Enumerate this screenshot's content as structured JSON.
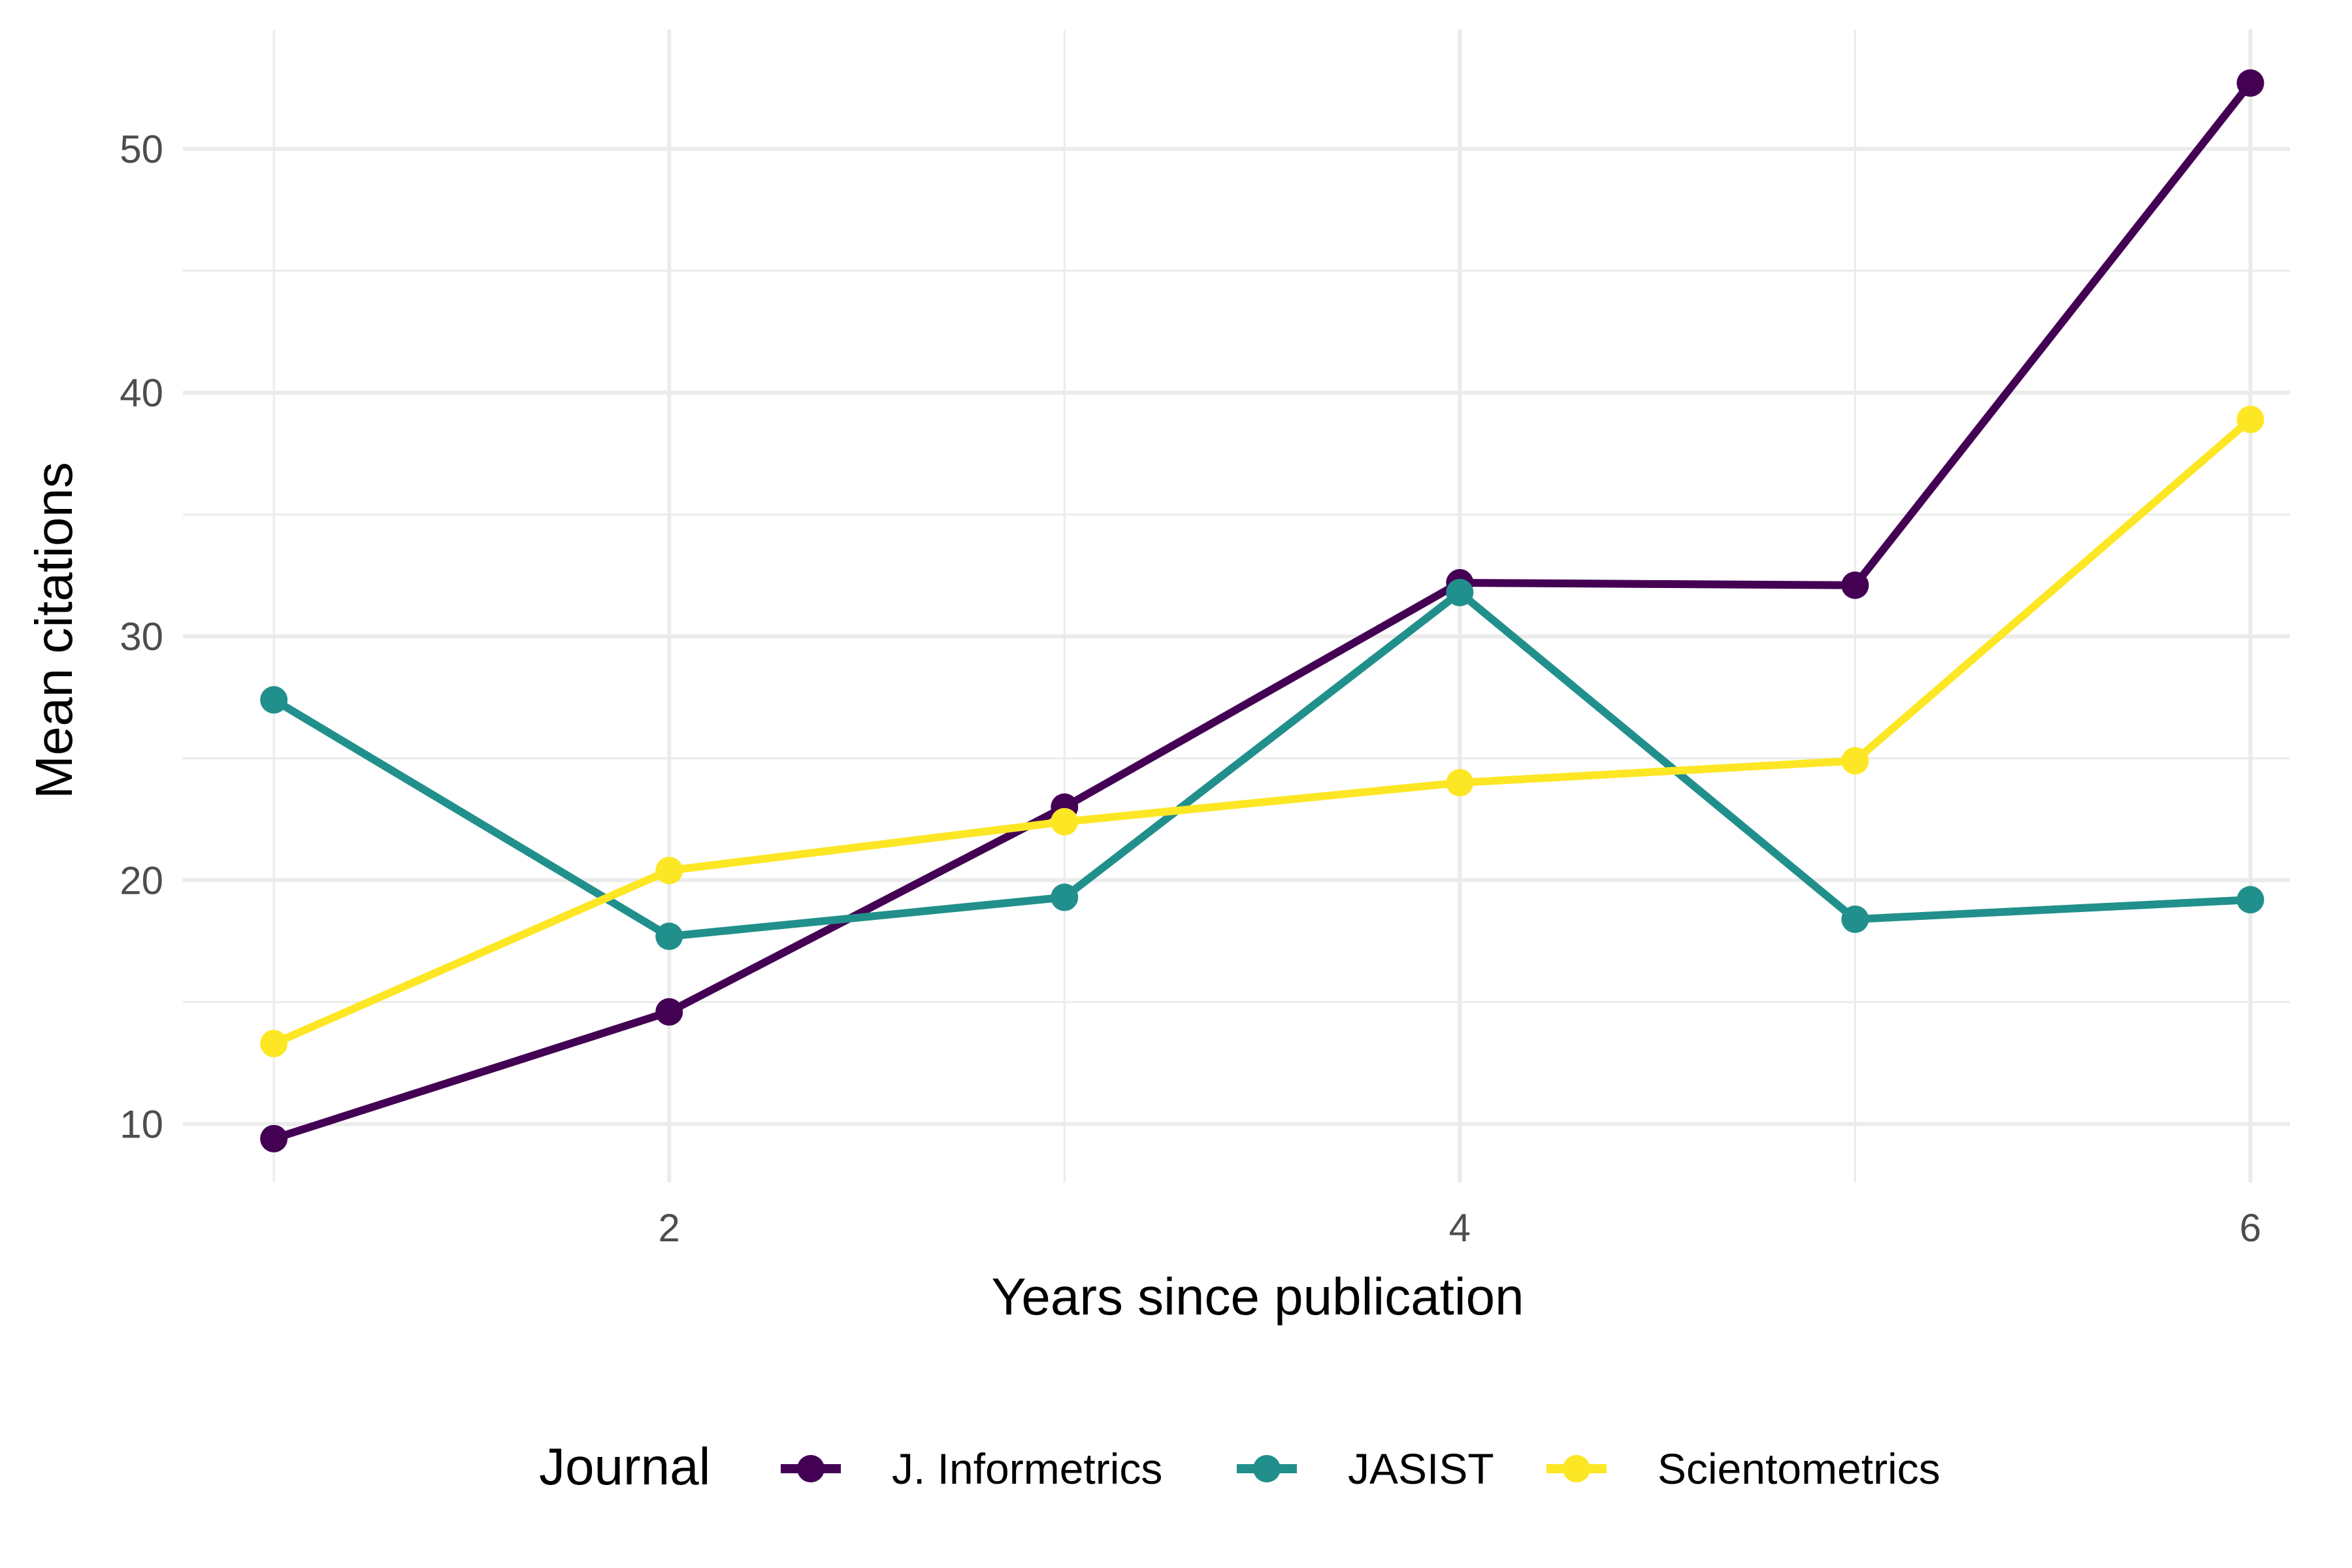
{
  "chart_data": {
    "type": "line",
    "title": "",
    "xlabel": "Years since publication",
    "ylabel": "Mean citations",
    "x": [
      1,
      2,
      3,
      4,
      5,
      6
    ],
    "xlim": [
      0.77,
      6.1
    ],
    "ylim": [
      7.6,
      54.9
    ],
    "x_ticks": [
      2,
      4,
      6
    ],
    "y_ticks": [
      10,
      20,
      30,
      40,
      50
    ],
    "x_minor_ticks": [
      1,
      3,
      5
    ],
    "y_minor_ticks": [
      15,
      25,
      35,
      45
    ],
    "grid": true,
    "legend": {
      "title": "Journal",
      "position": "bottom"
    },
    "series": [
      {
        "name": "J. Informetrics",
        "color": "#440154",
        "values": [
          9.4,
          14.6,
          23.0,
          32.2,
          32.1,
          52.7
        ]
      },
      {
        "name": "JASIST",
        "color": "#21908C",
        "values": [
          27.4,
          17.7,
          19.3,
          31.8,
          18.4,
          19.2
        ]
      },
      {
        "name": "Scientometrics",
        "color": "#FDE725",
        "values": [
          13.3,
          20.4,
          22.4,
          24.0,
          24.9,
          38.9
        ]
      }
    ]
  }
}
